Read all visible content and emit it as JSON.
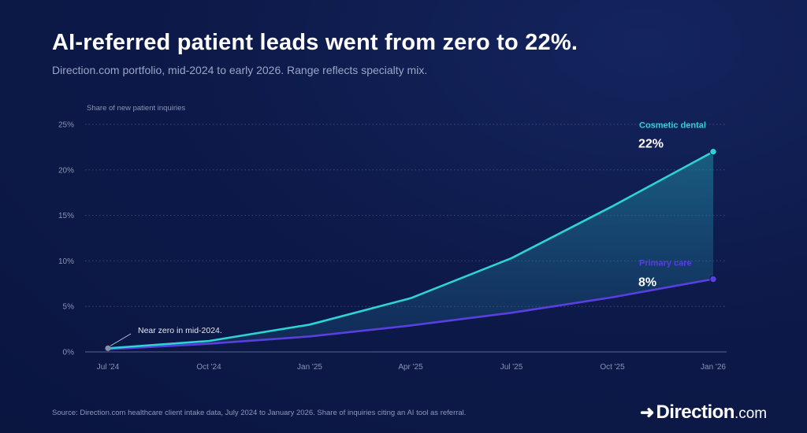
{
  "header": {
    "title": "AI-referred patient leads went from zero to 22%.",
    "subtitle": "Direction.com portfolio, mid-2024 to early 2026. Range reflects specialty mix."
  },
  "footer": {
    "source": "Source: Direction.com healthcare client intake data, July 2024 to January 2026. Share of inquiries citing an AI tool as referral.",
    "logo_main": "Direction",
    "logo_suffix": ".com"
  },
  "colors": {
    "background": "#0d1a4a",
    "cosmetic": "#2ed3d6",
    "primary": "#5a3fe0",
    "start_marker": "#8a8fa8"
  },
  "chart_data": {
    "type": "area",
    "title": "AI-referred patient leads went from zero to 22%.",
    "ylabel": "Share of new patient inquiries",
    "x": [
      "Jul '24",
      "Oct '24",
      "Jan '25",
      "Apr '25",
      "Jul '25",
      "Oct '25",
      "Jan '26"
    ],
    "y_ticks": [
      "0%",
      "5%",
      "10%",
      "15%",
      "20%",
      "25%"
    ],
    "ylim": [
      0,
      25
    ],
    "grid": "horizontal dotted",
    "series": [
      {
        "name": "Cosmetic dental",
        "values": [
          0.4,
          1.2,
          3.0,
          5.9,
          10.3,
          16.0,
          22.0
        ],
        "end_label": "22%",
        "color": "#2ed3d6"
      },
      {
        "name": "Primary care",
        "values": [
          0.3,
          0.9,
          1.7,
          2.9,
          4.3,
          6.0,
          8.0
        ],
        "end_label": "8%",
        "color": "#5a3fe0"
      }
    ],
    "annotations": [
      {
        "text": "Near zero in mid-2024.",
        "x": "Jul '24",
        "y": 0.4
      }
    ],
    "fill": "range between series"
  }
}
